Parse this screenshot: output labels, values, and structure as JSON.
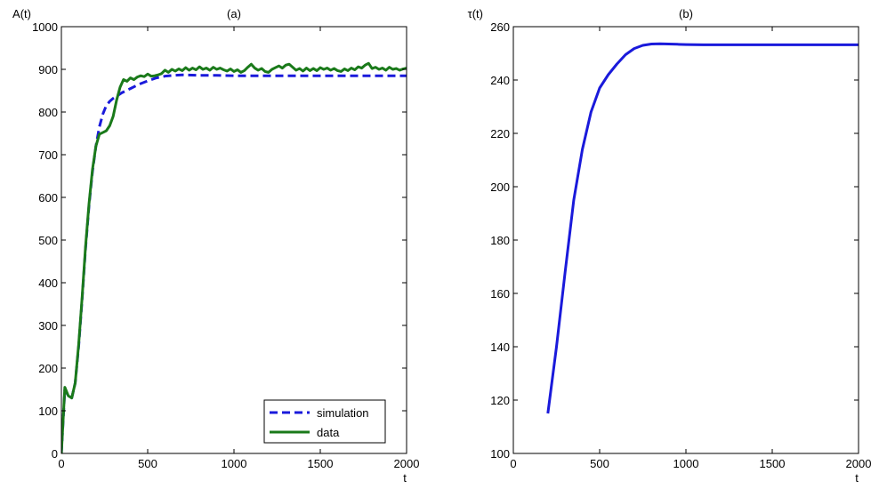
{
  "chart_data": [
    {
      "type": "line",
      "title": "(a)",
      "ylabel": "A(t)",
      "xlabel": "t",
      "xlim": [
        0,
        2000
      ],
      "ylim": [
        0,
        1000
      ],
      "xticks": [
        0,
        500,
        1000,
        1500,
        2000
      ],
      "yticks": [
        0,
        100,
        200,
        300,
        400,
        500,
        600,
        700,
        800,
        900,
        1000
      ],
      "grid": false,
      "legend_position": "bottom-right",
      "series": [
        {
          "name": "simulation",
          "color": "#1a1adb",
          "style": "dashed",
          "x": [
            0,
            20,
            40,
            60,
            80,
            100,
            120,
            140,
            160,
            180,
            200,
            220,
            240,
            260,
            280,
            300,
            350,
            400,
            450,
            500,
            550,
            600,
            650,
            700,
            800,
            900,
            1000,
            1200,
            1400,
            1600,
            1800,
            2000
          ],
          "y": [
            0,
            150,
            135,
            130,
            165,
            250,
            360,
            480,
            580,
            660,
            720,
            765,
            795,
            815,
            825,
            832,
            845,
            855,
            865,
            873,
            880,
            884,
            886,
            887,
            886,
            886,
            885,
            885,
            885,
            885,
            885,
            885
          ]
        },
        {
          "name": "data",
          "color": "#1a7a1a",
          "style": "solid",
          "x": [
            0,
            20,
            40,
            60,
            80,
            100,
            120,
            140,
            160,
            180,
            200,
            220,
            240,
            260,
            280,
            300,
            320,
            340,
            360,
            380,
            400,
            420,
            440,
            460,
            480,
            500,
            520,
            540,
            560,
            580,
            600,
            620,
            640,
            660,
            680,
            700,
            720,
            740,
            760,
            780,
            800,
            820,
            840,
            860,
            880,
            900,
            920,
            940,
            960,
            980,
            1000,
            1020,
            1040,
            1060,
            1080,
            1100,
            1120,
            1140,
            1160,
            1180,
            1200,
            1220,
            1240,
            1260,
            1280,
            1300,
            1320,
            1340,
            1360,
            1380,
            1400,
            1420,
            1440,
            1460,
            1480,
            1500,
            1520,
            1540,
            1560,
            1580,
            1600,
            1620,
            1640,
            1660,
            1680,
            1700,
            1720,
            1740,
            1760,
            1780,
            1800,
            1820,
            1840,
            1860,
            1880,
            1900,
            1920,
            1940,
            1960,
            1980,
            2000
          ],
          "y": [
            0,
            155,
            135,
            130,
            165,
            255,
            365,
            485,
            585,
            665,
            720,
            748,
            752,
            756,
            768,
            790,
            828,
            858,
            876,
            872,
            880,
            876,
            882,
            885,
            883,
            889,
            884,
            885,
            887,
            890,
            898,
            893,
            900,
            896,
            901,
            897,
            904,
            898,
            903,
            899,
            906,
            900,
            903,
            898,
            905,
            900,
            903,
            899,
            896,
            901,
            895,
            899,
            893,
            897,
            905,
            912,
            903,
            898,
            902,
            895,
            893,
            900,
            904,
            908,
            903,
            910,
            912,
            905,
            898,
            902,
            896,
            903,
            897,
            902,
            897,
            904,
            900,
            903,
            898,
            902,
            897,
            895,
            901,
            897,
            903,
            899,
            906,
            903,
            910,
            914,
            902,
            905,
            900,
            903,
            898,
            905,
            900,
            902,
            898,
            901,
            903
          ]
        }
      ]
    },
    {
      "type": "line",
      "title": "(b)",
      "ylabel": "τ(t)",
      "xlabel": "t",
      "xlim": [
        0,
        2000
      ],
      "ylim": [
        100,
        260
      ],
      "xticks": [
        0,
        500,
        1000,
        1500,
        2000
      ],
      "yticks": [
        100,
        120,
        140,
        160,
        180,
        200,
        220,
        240,
        260
      ],
      "grid": false,
      "series": [
        {
          "color": "#1a1adb",
          "style": "solid",
          "x": [
            200,
            250,
            300,
            350,
            400,
            450,
            500,
            550,
            600,
            650,
            700,
            750,
            800,
            850,
            900,
            950,
            1000,
            1100,
            1200,
            1400,
            1600,
            1800,
            2000
          ],
          "y": [
            115,
            140,
            168,
            195,
            214,
            228,
            237,
            242,
            246,
            249.5,
            251.8,
            253,
            253.5,
            253.6,
            253.5,
            253.4,
            253.3,
            253.2,
            253.2,
            253.2,
            253.2,
            253.2,
            253.2
          ]
        }
      ]
    }
  ]
}
